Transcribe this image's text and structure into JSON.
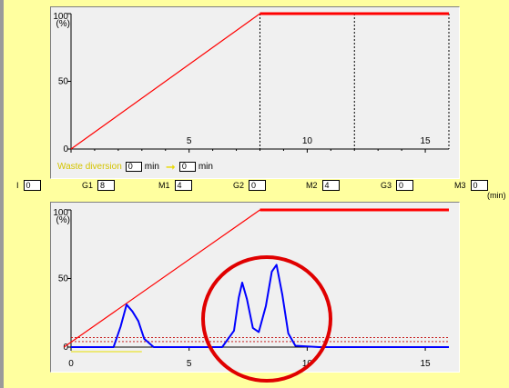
{
  "gradient_chart": {
    "y_unit": "(%)",
    "y_ticks": [
      "100",
      "50",
      "0"
    ],
    "x_ticks": [
      "5",
      "10",
      "15"
    ],
    "waste_diversion": {
      "label": "Waste diversion",
      "from": "0",
      "to": "0",
      "unit": "min"
    }
  },
  "parameters": [
    {
      "label": "I",
      "value": "0"
    },
    {
      "label": "G1",
      "value": "8"
    },
    {
      "label": "M1",
      "value": "4"
    },
    {
      "label": "G2",
      "value": "0"
    },
    {
      "label": "M2",
      "value": "4"
    },
    {
      "label": "G3",
      "value": "0"
    },
    {
      "label": "M3",
      "value": "0"
    }
  ],
  "time_unit": "(min)",
  "chromatogram": {
    "y_unit": "(%)",
    "y_ticks": [
      "100",
      "50",
      "0"
    ],
    "x_ticks": [
      "0",
      "5",
      "10",
      "15"
    ]
  },
  "colors": {
    "gradient_line": "#ff0000",
    "chromatogram_trace": "#0000ff",
    "highlight_circle": "#e00000",
    "background": "#ffff9f"
  },
  "chart_data": [
    {
      "type": "line",
      "title": "",
      "xlabel": "",
      "ylabel": "(%)",
      "xlim": [
        0,
        16
      ],
      "ylim": [
        0,
        100
      ],
      "x_ticks": [
        0,
        5,
        10,
        15
      ],
      "y_ticks": [
        0,
        50,
        100
      ],
      "series": [
        {
          "x": [
            0,
            8,
            16
          ],
          "y": [
            0,
            100,
            100
          ]
        }
      ],
      "vertical_markers_x": [
        8,
        12,
        16
      ]
    },
    {
      "type": "line",
      "title": "",
      "xlabel": "",
      "ylabel": "(%)",
      "xlim": [
        0,
        16
      ],
      "ylim": [
        0,
        100
      ],
      "x_ticks": [
        0,
        5,
        10,
        15
      ],
      "y_ticks": [
        0,
        50,
        100
      ],
      "series": [
        {
          "x": [
            -0.3,
            8,
            16
          ],
          "y": [
            0,
            100,
            100
          ]
        },
        {
          "x": [
            0,
            1.8,
            2.1,
            2.35,
            2.6,
            2.85,
            3.1,
            3.5,
            6.4,
            6.9,
            7.1,
            7.25,
            7.45,
            7.7,
            7.95,
            8.25,
            8.5,
            8.7,
            8.95,
            9.2,
            9.5,
            10.5,
            16
          ],
          "y": [
            0,
            0,
            15,
            31,
            26,
            19,
            6,
            0,
            0,
            12,
            36,
            47,
            35,
            14,
            11,
            30,
            55,
            60,
            38,
            10,
            1,
            0,
            0
          ]
        }
      ],
      "horizontal_reference_y": [
        4,
        7
      ]
    }
  ]
}
